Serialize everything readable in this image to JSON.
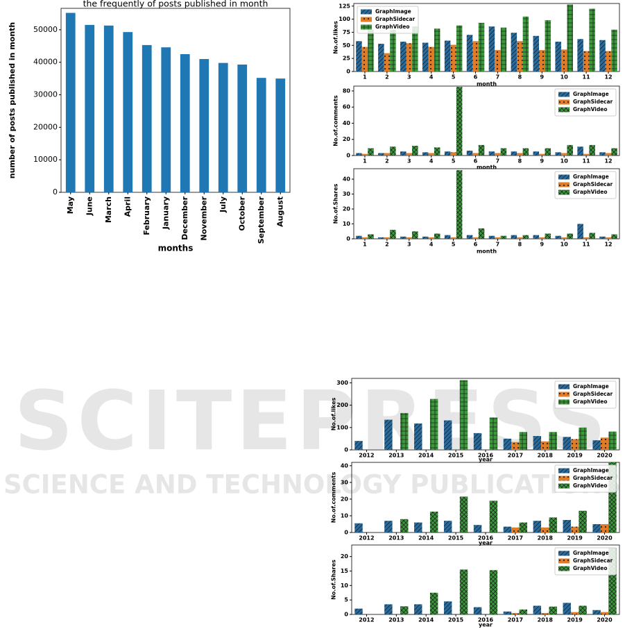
{
  "watermark": {
    "logo": "SCITEPRESS",
    "tagline": "SCIENCE AND TECHNOLOGY PUBLICATIONS"
  },
  "chart_data": [
    {
      "type": "bar",
      "title": "the frequently of posts published in month",
      "x_label": "months",
      "y_label": "number of posts published in month",
      "categories": [
        "May",
        "June",
        "March",
        "April",
        "February",
        "January",
        "December",
        "November",
        "July",
        "October",
        "September",
        "August"
      ],
      "values": [
        55200,
        51500,
        51300,
        49300,
        45300,
        44600,
        42500,
        41000,
        39800,
        39300,
        35200,
        35000
      ],
      "color": "#1f77b4",
      "ylim": [
        0,
        56600
      ],
      "yticks": [
        0,
        10000,
        20000,
        30000,
        40000,
        50000
      ]
    },
    {
      "type": "bar",
      "x_label": "month",
      "y_label": "No.of.likes",
      "legend": "upper left",
      "categories": [
        "1",
        "2",
        "3",
        "4",
        "5",
        "6",
        "7",
        "8",
        "9",
        "10",
        "11",
        "12"
      ],
      "series": [
        {
          "name": "GraphImage",
          "color": "#2b6a99",
          "values": [
            58,
            53,
            57,
            55,
            59,
            70,
            86,
            74,
            68,
            57,
            62,
            60
          ]
        },
        {
          "name": "GraphSidecar",
          "color": "#e07b27",
          "values": [
            47,
            35,
            54,
            47,
            51,
            58,
            41,
            58,
            41,
            42,
            39,
            39
          ]
        },
        {
          "name": "GraphVideo",
          "color": "#3a9a3a",
          "values": [
            80,
            80,
            86,
            82,
            88,
            93,
            84,
            105,
            98,
            128,
            120,
            80
          ]
        }
      ],
      "ylim": [
        0,
        130
      ],
      "yticks": [
        0,
        25,
        50,
        75,
        100,
        125
      ]
    },
    {
      "type": "bar",
      "x_label": "month",
      "y_label": "No.of.comments",
      "legend": "upper right",
      "categories": [
        "1",
        "2",
        "3",
        "4",
        "5",
        "6",
        "7",
        "8",
        "9",
        "10",
        "11",
        "12"
      ],
      "series": [
        {
          "name": "GraphImage",
          "color": "#2b6a99",
          "values": [
            3,
            3,
            5,
            4,
            5,
            6,
            5,
            5,
            5,
            4,
            11,
            4
          ]
        },
        {
          "name": "GraphSidecar",
          "color": "#e07b27",
          "values": [
            2,
            3,
            3,
            3,
            4,
            3,
            3,
            3,
            2,
            3,
            2,
            3
          ]
        },
        {
          "name": "GraphVideo",
          "color": "#3a9a3a",
          "values": [
            9,
            11,
            12,
            10,
            85,
            13,
            9,
            9,
            9,
            13,
            13,
            9
          ]
        }
      ],
      "ylim": [
        0,
        86
      ],
      "yticks": [
        0,
        20,
        40,
        60,
        80
      ]
    },
    {
      "type": "bar",
      "x_label": "month",
      "y_label": "No.of.Shares",
      "legend": "upper right",
      "categories": [
        "1",
        "2",
        "3",
        "4",
        "5",
        "6",
        "7",
        "8",
        "9",
        "10",
        "11",
        "12"
      ],
      "series": [
        {
          "name": "GraphImage",
          "color": "#2b6a99",
          "values": [
            2,
            1,
            1.5,
            1.5,
            2.5,
            2.5,
            2,
            2.5,
            2.5,
            2,
            10,
            1.5
          ]
        },
        {
          "name": "GraphSidecar",
          "color": "#e07b27",
          "values": [
            1,
            1,
            1,
            1,
            1,
            1,
            1,
            1,
            1,
            1,
            1,
            1
          ]
        },
        {
          "name": "GraphVideo",
          "color": "#3a9a3a",
          "values": [
            3,
            6,
            5,
            3.5,
            46,
            7,
            2,
            2.5,
            3.5,
            3.5,
            4,
            3
          ]
        }
      ],
      "ylim": [
        0,
        47
      ],
      "yticks": [
        0,
        10,
        20,
        30,
        40
      ]
    },
    {
      "type": "bar",
      "x_label": "year",
      "y_label": "No.of.likes",
      "legend": "upper right",
      "categories": [
        "2012",
        "2013",
        "2014",
        "2015",
        "2016",
        "2017",
        "2018",
        "2019",
        "2020"
      ],
      "series": [
        {
          "name": "GraphImage",
          "color": "#2b6a99",
          "values": [
            40,
            135,
            118,
            132,
            75,
            50,
            62,
            58,
            43
          ]
        },
        {
          "name": "GraphSidecar",
          "color": "#e07b27",
          "values": [
            null,
            null,
            null,
            null,
            null,
            35,
            38,
            48,
            55
          ]
        },
        {
          "name": "GraphVideo",
          "color": "#3a9a3a",
          "values": [
            null,
            165,
            228,
            312,
            145,
            80,
            80,
            100,
            82
          ]
        }
      ],
      "ylim": [
        0,
        320
      ],
      "yticks": [
        0,
        100,
        200,
        300
      ]
    },
    {
      "type": "bar",
      "x_label": "year",
      "y_label": "No.of.comments",
      "legend": "upper right",
      "categories": [
        "2012",
        "2013",
        "2014",
        "2015",
        "2016",
        "2017",
        "2018",
        "2019",
        "2020"
      ],
      "series": [
        {
          "name": "GraphImage",
          "color": "#2b6a99",
          "values": [
            5.5,
            7,
            6,
            7,
            4.5,
            3.5,
            7,
            7.5,
            5
          ]
        },
        {
          "name": "GraphSidecar",
          "color": "#e07b27",
          "values": [
            null,
            null,
            null,
            null,
            null,
            3,
            3,
            3.5,
            5
          ]
        },
        {
          "name": "GraphVideo",
          "color": "#3a9a3a",
          "values": [
            null,
            8,
            12.5,
            21.5,
            19,
            6,
            9,
            13,
            42
          ]
        }
      ],
      "ylim": [
        0,
        42
      ],
      "yticks": [
        0,
        10,
        20,
        30,
        40
      ]
    },
    {
      "type": "bar",
      "x_label": "year",
      "y_label": "No.of.Shares",
      "legend": "upper right",
      "categories": [
        "2012",
        "2013",
        "2014",
        "2015",
        "2016",
        "2017",
        "2018",
        "2019",
        "2020"
      ],
      "series": [
        {
          "name": "GraphImage",
          "color": "#2b6a99",
          "values": [
            2,
            3.5,
            3.5,
            4.5,
            2.5,
            1,
            3,
            4,
            1.5
          ]
        },
        {
          "name": "GraphSidecar",
          "color": "#e07b27",
          "values": [
            null,
            null,
            null,
            null,
            null,
            0.5,
            0.5,
            0.8,
            0.8
          ]
        },
        {
          "name": "GraphVideo",
          "color": "#3a9a3a",
          "values": [
            null,
            2.8,
            7.5,
            15.5,
            15.3,
            1.7,
            2.7,
            3,
            23
          ]
        }
      ],
      "ylim": [
        0,
        24
      ],
      "yticks": [
        0,
        5,
        10,
        15,
        20
      ]
    }
  ]
}
